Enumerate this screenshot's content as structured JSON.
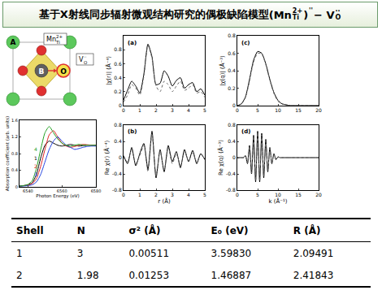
{
  "title": {
    "text": "基于X射线同步辐射微观结构研究的偶极缺陷模型",
    "formula": [
      {
        "text": "(Mn"
      },
      {
        "sub": "Ti",
        "sup": "2+"
      },
      {
        "text": ")"
      },
      {
        "sup": "''"
      },
      {
        "text": " − V"
      },
      {
        "sub": "O",
        "sup": "··"
      }
    ]
  },
  "structure": {
    "atoms": [
      "A",
      "B",
      "O"
    ],
    "defect_labels": [
      {
        "base": "Mn",
        "sub": "Ti",
        "sup": "2+"
      },
      {
        "base": "V",
        "sub": "O",
        "sup": "··"
      }
    ]
  },
  "chart_data": [
    {
      "type": "line",
      "x_label": "Photon Energy (eV)",
      "y_label": "Absorption coefficient (arb. units)",
      "x": [
        6535,
        6537.5,
        6540,
        6542.5,
        6545,
        6547.5,
        6550,
        6552.5,
        6555,
        6557.5,
        6560,
        6562.5,
        6565,
        6567.5,
        6570,
        6572.5,
        6575,
        6577.5,
        6580
      ],
      "xlim": [
        6535,
        6580
      ],
      "xticks": [
        6540,
        6560,
        6580
      ],
      "ylim": [
        0,
        1.6
      ],
      "yticks": [
        0,
        0.4,
        0.8,
        1.2,
        1.6
      ],
      "series": [
        {
          "name": "1",
          "color": "#000000",
          "line_style": "solid",
          "values": [
            0.02,
            0.03,
            0.05,
            0.1,
            0.3,
            0.7,
            1.0,
            1.1,
            1.05,
            1.0,
            0.98,
            1.0,
            1.02,
            1.0,
            0.98,
            0.99,
            1.0,
            1.0,
            1.0
          ]
        },
        {
          "name": "2",
          "color": "#e02020",
          "line_style": "solid",
          "values": [
            0.02,
            0.03,
            0.04,
            0.08,
            0.2,
            0.5,
            0.9,
            1.25,
            1.35,
            1.2,
            1.05,
            0.98,
            0.95,
            0.97,
            1.0,
            1.02,
            1.01,
            1.0,
            1.0
          ]
        },
        {
          "name": "3",
          "color": "#2040e0",
          "line_style": "solid",
          "values": [
            0.02,
            0.02,
            0.03,
            0.05,
            0.12,
            0.3,
            0.6,
            0.9,
            1.1,
            1.2,
            1.1,
            1.0,
            0.95,
            0.9,
            0.92,
            0.95,
            0.97,
            0.98,
            0.98
          ]
        },
        {
          "name": "4",
          "color": "#20a020",
          "line_style": "solid",
          "values": [
            0.02,
            0.03,
            0.06,
            0.15,
            0.45,
            0.9,
            1.3,
            1.45,
            1.3,
            1.15,
            1.05,
            1.0,
            0.98,
            1.0,
            1.02,
            1.0,
            1.0,
            1.0,
            1.0
          ]
        }
      ]
    },
    {
      "type": "line",
      "label": "(a)",
      "y_label": "|χ(r)| (Å⁻⁴)",
      "x": [
        0,
        0.25,
        0.5,
        0.75,
        1,
        1.25,
        1.5,
        1.75,
        2,
        2.25,
        2.5,
        2.75,
        3,
        3.25,
        3.5,
        3.75,
        4,
        4.25,
        4.5,
        4.75,
        5
      ],
      "xlim": [
        0,
        5
      ],
      "xticks": [
        0,
        1,
        2,
        3,
        4,
        5
      ],
      "ylim": [
        0,
        1
      ],
      "yticks": [
        0,
        0.2,
        0.4,
        0.6,
        0.8
      ],
      "series": [
        {
          "color": "#000000",
          "line_style": "solid",
          "values": [
            0.08,
            0.22,
            0.35,
            0.28,
            0.18,
            0.45,
            0.88,
            0.7,
            0.3,
            0.32,
            0.5,
            0.42,
            0.28,
            0.36,
            0.4,
            0.25,
            0.3,
            0.33,
            0.2,
            0.24,
            0.15
          ]
        },
        {
          "color": "#666666",
          "line_style": "dotted",
          "values": [
            0.05,
            0.15,
            0.3,
            0.25,
            0.15,
            0.42,
            0.86,
            0.68,
            0.28,
            0.2,
            0.35,
            0.3,
            0.2,
            0.28,
            0.35,
            0.22,
            0.25,
            0.3,
            0.18,
            0.2,
            0.12
          ]
        }
      ]
    },
    {
      "type": "line",
      "label": "(b)",
      "x_label": "r (Å)",
      "y_label": "Re χ(r) (Å⁻⁴)",
      "x": [
        0,
        0.25,
        0.5,
        0.75,
        1,
        1.25,
        1.5,
        1.75,
        2,
        2.25,
        2.5,
        2.75,
        3,
        3.25,
        3.5,
        3.75,
        4,
        4.25,
        4.5,
        4.75,
        5
      ],
      "xlim": [
        0,
        5
      ],
      "xticks": [
        0,
        1,
        2,
        3,
        4,
        5
      ],
      "ylim": [
        -0.8,
        0.8
      ],
      "yticks": [
        -0.8,
        -0.4,
        0,
        0.4,
        0.8
      ],
      "series": [
        {
          "color": "#000000",
          "line_style": "solid",
          "values": [
            0.05,
            -0.15,
            0.25,
            -0.2,
            0.1,
            0.35,
            -0.3,
            0.65,
            -0.5,
            0.2,
            -0.35,
            0.3,
            -0.1,
            0.15,
            -0.25,
            0.2,
            -0.1,
            0.18,
            -0.15,
            0.1,
            -0.05
          ]
        },
        {
          "color": "#666666",
          "line_style": "dotted",
          "values": [
            0.03,
            -0.1,
            0.2,
            -0.15,
            0.05,
            0.3,
            -0.35,
            0.6,
            -0.45,
            0.15,
            -0.3,
            0.25,
            -0.15,
            0.1,
            -0.2,
            0.15,
            -0.08,
            0.12,
            -0.1,
            0.08,
            -0.03
          ]
        }
      ]
    },
    {
      "type": "line",
      "label": "(c)",
      "y_label": "|χ(q)| (Å⁻³)",
      "x": [
        0,
        1,
        2,
        3,
        4,
        5,
        6,
        7,
        8,
        9,
        10,
        11,
        12,
        13,
        14,
        15,
        16,
        17,
        18,
        19,
        20
      ],
      "xlim": [
        0,
        20
      ],
      "xticks": [
        0,
        5,
        10,
        15,
        20
      ],
      "ylim": [
        0,
        0.8
      ],
      "yticks": [
        0,
        0.2,
        0.4,
        0.6,
        0.8
      ],
      "series": [
        {
          "color": "#000000",
          "line_style": "solid",
          "values": [
            0,
            0.02,
            0.1,
            0.3,
            0.52,
            0.62,
            0.6,
            0.48,
            0.3,
            0.15,
            0.06,
            0.02,
            0.01,
            0,
            0,
            0,
            0,
            0,
            0,
            0,
            0
          ]
        },
        {
          "color": "#666666",
          "line_style": "dotted",
          "values": [
            0,
            0.02,
            0.09,
            0.28,
            0.5,
            0.6,
            0.59,
            0.47,
            0.29,
            0.14,
            0.05,
            0.02,
            0.01,
            0,
            0,
            0,
            0,
            0,
            0,
            0,
            0
          ]
        }
      ]
    },
    {
      "type": "line",
      "label": "(d)",
      "x_label": "k (Å⁻¹)",
      "y_label": "Re χ(q) (Å⁻³)",
      "x": [
        0,
        0.5,
        1,
        1.5,
        2,
        2.5,
        3,
        3.5,
        4,
        4.5,
        5,
        5.5,
        6,
        6.5,
        7,
        7.5,
        8,
        8.5,
        9,
        9.5,
        10,
        10.5,
        11,
        11.5,
        12,
        12.5,
        13,
        13.5,
        14,
        14.5,
        15,
        15.5,
        16,
        16.5,
        17,
        17.5,
        18,
        18.5,
        19,
        19.5,
        20
      ],
      "xlim": [
        0,
        20
      ],
      "xticks": [
        0,
        5,
        10,
        15,
        20
      ],
      "ylim": [
        -0.8,
        0.8
      ],
      "yticks": [
        -0.8,
        -0.4,
        0,
        0.4,
        0.8
      ],
      "series": [
        {
          "color": "#000000",
          "line_style": "solid",
          "values": [
            0,
            0,
            0,
            0,
            0.05,
            -0.15,
            0.3,
            -0.4,
            0.55,
            -0.6,
            0.65,
            -0.6,
            0.6,
            -0.5,
            0.45,
            -0.35,
            0.25,
            -0.15,
            0.1,
            -0.05,
            0.02,
            0,
            0,
            0,
            0,
            0,
            0,
            0,
            0,
            0,
            0,
            0,
            0,
            0,
            0,
            0,
            0,
            0,
            0,
            0,
            0
          ]
        },
        {
          "color": "#666666",
          "line_style": "dotted",
          "values": [
            0,
            0,
            0,
            0,
            0.04,
            -0.13,
            0.28,
            -0.38,
            0.52,
            -0.57,
            0.62,
            -0.58,
            0.56,
            -0.47,
            0.42,
            -0.33,
            0.23,
            -0.14,
            0.09,
            -0.04,
            0.02,
            0,
            0,
            0,
            0,
            0,
            0,
            0,
            0,
            0,
            0,
            0,
            0,
            0,
            0,
            0,
            0,
            0,
            0,
            0,
            0
          ]
        }
      ]
    }
  ],
  "table": {
    "header": [
      "Shell",
      "N",
      "σ² (Å)",
      "E₀ (eV)",
      "R (Å)"
    ],
    "rows": [
      [
        "1",
        "3",
        "0.00511",
        "3.59830",
        "2.09491"
      ],
      [
        "2",
        "1.98",
        "0.01253",
        "1.46887",
        "2.41843"
      ]
    ]
  }
}
